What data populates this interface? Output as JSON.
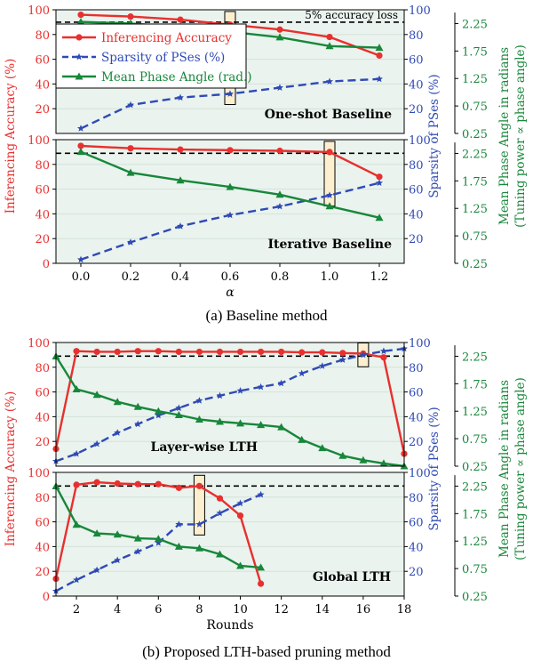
{
  "colors": {
    "accuracy": "#e8302e",
    "sparsity": "#2f4ab5",
    "phase": "#17873a",
    "highlight_fill": "#fbefcf",
    "bg": "#eaf3ee"
  },
  "chart_data": [
    {
      "type": "line",
      "label": "One-shot Baseline",
      "x": [
        0.0,
        0.2,
        0.4,
        0.6,
        0.8,
        1.0,
        1.2
      ],
      "xlim": [
        -0.1,
        1.3
      ],
      "series": [
        {
          "name": "Inferencing Accuracy",
          "axis": "left",
          "values": [
            96,
            94.5,
            92,
            88,
            84,
            78,
            63
          ]
        },
        {
          "name": "Sparsity of PSes (%)",
          "axis": "right",
          "values": [
            4,
            23,
            29,
            32,
            37,
            42,
            44
          ]
        },
        {
          "name": "Mean Phase Angle (rad.)",
          "axis": "right2",
          "values": [
            2.28,
            2.25,
            2.19,
            2.1,
            2.0,
            1.84,
            1.81
          ]
        }
      ],
      "reference_line": {
        "value": 90,
        "label": "5% accuracy loss"
      },
      "highlight_x": 0.6,
      "ylim": [
        0,
        100
      ],
      "y2lim": [
        0,
        100
      ],
      "y3lim": [
        0.25,
        2.5
      ]
    },
    {
      "type": "line",
      "label": "Iterative Baseline",
      "x": [
        0.0,
        0.2,
        0.4,
        0.6,
        0.8,
        1.0,
        1.2
      ],
      "xlim": [
        -0.1,
        1.3
      ],
      "series": [
        {
          "name": "Inferencing Accuracy",
          "axis": "left",
          "values": [
            95,
            93,
            92,
            91.5,
            91,
            90,
            70
          ]
        },
        {
          "name": "Sparsity of PSes (%)",
          "axis": "right",
          "values": [
            3,
            17,
            30,
            39,
            46,
            55,
            65
          ]
        },
        {
          "name": "Mean Phase Angle (rad.)",
          "axis": "right2",
          "values": [
            2.28,
            1.9,
            1.76,
            1.64,
            1.5,
            1.29,
            1.08
          ]
        }
      ],
      "reference_line": {
        "value": 89
      },
      "highlight_x": 1.0,
      "xticks": [
        "0.0",
        "0.2",
        "0.4",
        "0.6",
        "0.8",
        "1.0",
        "1.2"
      ],
      "xlabel": "α",
      "ylim": [
        0,
        100
      ],
      "y2lim": [
        0,
        100
      ],
      "y3lim": [
        0.25,
        2.5
      ]
    },
    {
      "type": "line",
      "label": "Layer-wise LTH",
      "x": [
        1,
        2,
        3,
        4,
        5,
        6,
        7,
        8,
        9,
        10,
        11,
        12,
        13,
        14,
        15,
        16,
        17,
        18
      ],
      "xlim": [
        1,
        18
      ],
      "series": [
        {
          "name": "Inferencing Accuracy",
          "axis": "left",
          "values": [
            14,
            93,
            92.5,
            92.5,
            93,
            93,
            92.5,
            92.5,
            92.5,
            92.5,
            92.5,
            92.5,
            92,
            92,
            91.5,
            91,
            88,
            10
          ]
        },
        {
          "name": "Sparsity of PSes (%)",
          "axis": "right",
          "values": [
            4,
            10,
            18,
            27,
            34,
            41,
            47,
            53,
            57,
            61,
            64,
            67,
            75,
            81,
            86,
            90,
            93,
            95
          ]
        },
        {
          "name": "Mean Phase Angle (rad.)",
          "axis": "right2",
          "values": [
            2.25,
            1.65,
            1.55,
            1.42,
            1.33,
            1.25,
            1.18,
            1.1,
            1.06,
            1.03,
            1.0,
            0.96,
            0.73,
            0.58,
            0.44,
            0.36,
            0.3,
            0.25
          ]
        }
      ],
      "reference_line": {
        "value": 89
      },
      "highlight_x": 16,
      "ylim": [
        0,
        100
      ],
      "y2lim": [
        0,
        100
      ],
      "y3lim": [
        0.25,
        2.5
      ]
    },
    {
      "type": "line",
      "label": "Global LTH",
      "x": [
        1,
        2,
        3,
        4,
        5,
        6,
        7,
        8,
        9,
        10,
        11
      ],
      "xlim": [
        1,
        18
      ],
      "series": [
        {
          "name": "Inferencing Accuracy",
          "axis": "left",
          "values": [
            14,
            90,
            92,
            91,
            90.5,
            90.5,
            87.5,
            89,
            79,
            65,
            10
          ]
        },
        {
          "name": "Sparsity of PSes (%)",
          "axis": "right",
          "values": [
            4,
            13,
            21,
            29,
            36,
            43,
            58,
            58,
            67,
            75,
            82
          ]
        },
        {
          "name": "Mean Phase Angle (rad.)",
          "axis": "right2",
          "values": [
            2.25,
            1.55,
            1.39,
            1.37,
            1.3,
            1.29,
            1.15,
            1.12,
            1.01,
            0.8,
            0.77
          ]
        }
      ],
      "reference_line": {
        "value": 89
      },
      "highlight_x": 8,
      "xticks": [
        "2",
        "4",
        "6",
        "8",
        "10",
        "12",
        "14",
        "16",
        "18"
      ],
      "xlabel": "Rounds",
      "ylim": [
        0,
        100
      ],
      "y2lim": [
        0,
        100
      ],
      "y3lim": [
        0.25,
        2.5
      ]
    }
  ],
  "axis_titles": {
    "left": "Inferencing Accuracy (%)",
    "right": "Sparsity of PSes (%)",
    "right2_line1": "Mean Phase Angle in radians",
    "right2_line2": "(Tuning power ∝ phase angle)"
  },
  "left_ticks": [
    "0",
    "20",
    "40",
    "60",
    "80",
    "100"
  ],
  "right_ticks": [
    "20",
    "40",
    "60",
    "80",
    "100"
  ],
  "right2_ticks": [
    "0.25",
    "0.75",
    "1.25",
    "1.75",
    "2.25"
  ],
  "legend": [
    "Inferencing Accuracy",
    "Sparsity of PSes (%)",
    "Mean Phase Angle (rad.)"
  ],
  "captions": {
    "a": "(a) Baseline method",
    "b": "(b) Proposed LTH-based pruning method"
  }
}
